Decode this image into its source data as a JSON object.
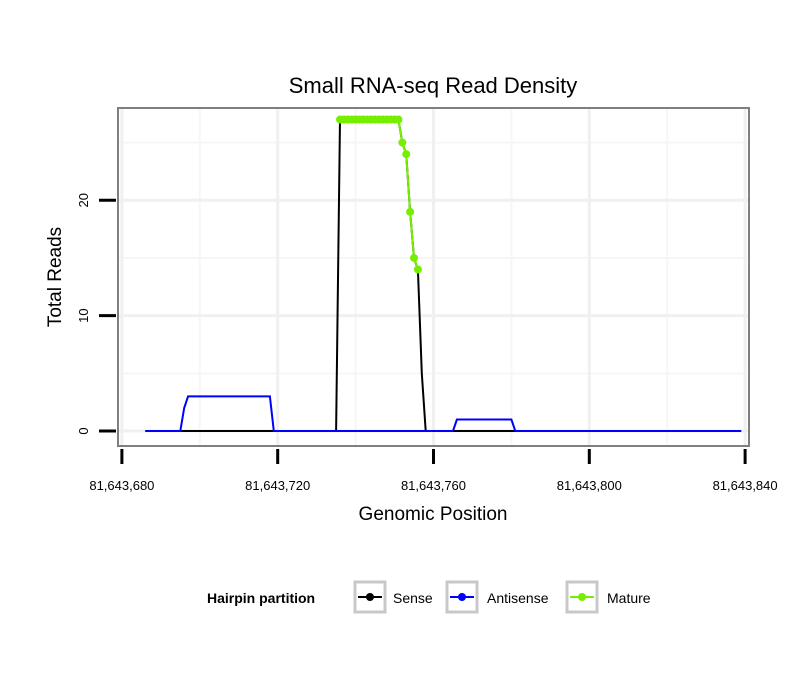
{
  "chart_data": {
    "type": "line",
    "title": "Small RNA-seq Read Density",
    "xlabel": "Genomic Position",
    "ylabel": "Total Reads",
    "xlim": [
      81643679,
      81643841
    ],
    "ylim": [
      -1.3,
      28
    ],
    "x_ticks": [
      81643680,
      81643720,
      81643760,
      81643800,
      81643840
    ],
    "x_tick_labels": [
      "81,643,680",
      "81,643,720",
      "81,643,760",
      "81,643,800",
      "81,643,840"
    ],
    "y_ticks": [
      0,
      10,
      20
    ],
    "y_tick_labels": [
      "0",
      "10",
      "20"
    ],
    "x_minor_gridlines": [
      81643700,
      81643740,
      81643780,
      81643820
    ],
    "y_minor_gridlines": [
      5,
      15,
      25
    ],
    "grid": true,
    "legend": {
      "title": "Hairpin partition",
      "position": "bottom",
      "entries": [
        "Sense",
        "Antisense",
        "Mature"
      ]
    },
    "series": [
      {
        "name": "Sense",
        "color": "#000000",
        "x": [
          81643686,
          81643735,
          81643736,
          81643751,
          81643752,
          81643753,
          81643754,
          81643755,
          81643756,
          81643757,
          81643758,
          81643839
        ],
        "y": [
          0,
          0,
          27,
          27,
          25,
          24,
          19,
          15,
          14,
          5,
          0,
          0
        ]
      },
      {
        "name": "Antisense",
        "color": "#0000ff",
        "x": [
          81643686,
          81643695,
          81643696,
          81643697,
          81643718,
          81643719,
          81643765,
          81643766,
          81643780,
          81643781,
          81643839
        ],
        "y": [
          0,
          0,
          2,
          3,
          3,
          0,
          0,
          1,
          1,
          0,
          0
        ]
      },
      {
        "name": "Mature",
        "color": "#76ee00",
        "x": [
          81643736,
          81643737,
          81643738,
          81643739,
          81643740,
          81643741,
          81643742,
          81643743,
          81643744,
          81643745,
          81643746,
          81643747,
          81643748,
          81643749,
          81643750,
          81643751,
          81643752,
          81643753,
          81643754,
          81643755,
          81643756
        ],
        "y": [
          27,
          27,
          27,
          27,
          27,
          27,
          27,
          27,
          27,
          27,
          27,
          27,
          27,
          27,
          27,
          27,
          25,
          24,
          19,
          15,
          14
        ]
      }
    ]
  }
}
